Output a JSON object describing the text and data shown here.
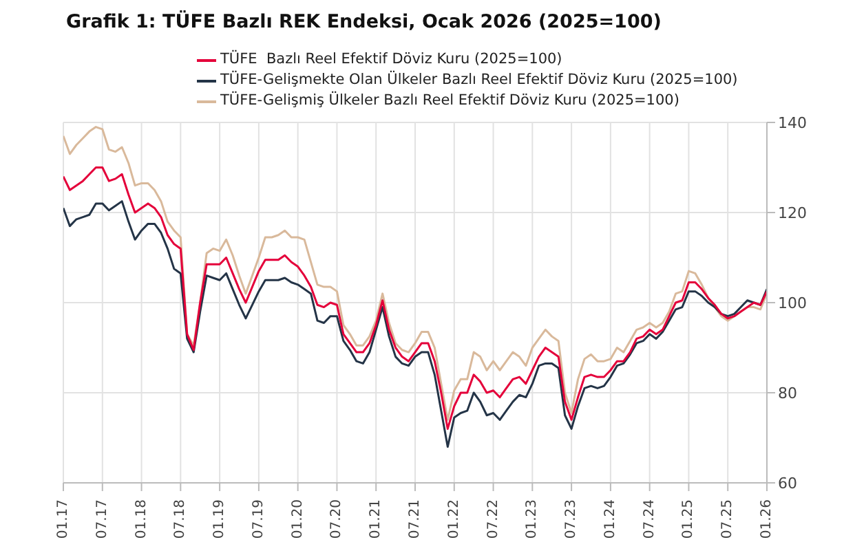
{
  "chart_data": {
    "type": "line",
    "title": "Grafik 1: TÜFE Bazlı REK Endeksi, Ocak 2026 (2025=100)",
    "x": [
      "2017-01",
      "2017-02",
      "2017-03",
      "2017-04",
      "2017-05",
      "2017-06",
      "2017-07",
      "2017-08",
      "2017-09",
      "2017-10",
      "2017-11",
      "2017-12",
      "2018-01",
      "2018-02",
      "2018-03",
      "2018-04",
      "2018-05",
      "2018-06",
      "2018-07",
      "2018-08",
      "2018-09",
      "2018-10",
      "2018-11",
      "2018-12",
      "2019-01",
      "2019-02",
      "2019-03",
      "2019-04",
      "2019-05",
      "2019-06",
      "2019-07",
      "2019-08",
      "2019-09",
      "2019-10",
      "2019-11",
      "2019-12",
      "2020-01",
      "2020-02",
      "2020-03",
      "2020-04",
      "2020-05",
      "2020-06",
      "2020-07",
      "2020-08",
      "2020-09",
      "2020-10",
      "2020-11",
      "2020-12",
      "2021-01",
      "2021-02",
      "2021-03",
      "2021-04",
      "2021-05",
      "2021-06",
      "2021-07",
      "2021-08",
      "2021-09",
      "2021-10",
      "2021-11",
      "2021-12",
      "2022-01",
      "2022-02",
      "2022-03",
      "2022-04",
      "2022-05",
      "2022-06",
      "2022-07",
      "2022-08",
      "2022-09",
      "2022-10",
      "2022-11",
      "2022-12",
      "2023-01",
      "2023-02",
      "2023-03",
      "2023-04",
      "2023-05",
      "2023-06",
      "2023-07",
      "2023-08",
      "2023-09",
      "2023-10",
      "2023-11",
      "2023-12",
      "2024-01",
      "2024-02",
      "2024-03",
      "2024-04",
      "2024-05",
      "2024-06",
      "2024-07",
      "2024-08",
      "2024-09",
      "2024-10",
      "2024-11",
      "2024-12",
      "2025-01",
      "2025-02",
      "2025-03",
      "2025-04",
      "2025-05",
      "2025-06",
      "2025-07",
      "2025-08",
      "2025-09",
      "2025-10",
      "2025-11",
      "2025-12",
      "2026-01"
    ],
    "series": [
      {
        "name": "TÜFE  Bazlı Reel Efektif Döviz Kuru (2025=100)",
        "color": "#e4003a",
        "values": [
          128,
          125,
          126,
          127,
          128.5,
          130,
          130,
          127,
          127.5,
          128.5,
          124,
          120,
          121,
          122,
          121,
          119,
          115,
          113,
          112,
          93,
          89.5,
          100,
          108.5,
          108.5,
          108.5,
          110,
          106.5,
          103,
          100,
          103.5,
          107,
          109.5,
          109.5,
          109.5,
          110.5,
          109,
          108,
          106,
          103.5,
          99.5,
          99,
          100,
          99.5,
          93,
          91,
          89,
          89,
          91,
          95,
          100.5,
          94,
          90,
          88,
          87,
          89,
          91,
          91,
          87,
          80,
          72,
          77,
          80,
          80,
          84,
          82.5,
          80,
          80.5,
          79,
          81,
          83,
          83.5,
          82,
          85,
          88,
          90,
          89,
          88,
          78,
          74,
          79,
          83.5,
          84,
          83.5,
          83.5,
          85,
          87,
          87,
          89,
          92,
          92.5,
          94,
          93,
          94,
          97,
          100,
          100.5,
          104.5,
          104.5,
          103,
          101,
          99.5,
          97.5,
          96.5,
          97,
          98,
          99,
          100,
          99.5,
          102.5
        ]
      },
      {
        "name": "TÜFE-Gelişmekte Olan Ülkeler Bazlı Reel Efektif Döviz Kuru (2025=100)",
        "color": "#243447",
        "values": [
          121,
          117,
          118.5,
          119,
          119.5,
          122,
          122,
          120.5,
          121.5,
          122.5,
          118,
          114,
          116,
          117.5,
          117.5,
          115.5,
          112,
          107.5,
          106.5,
          92,
          89,
          98,
          106,
          105.5,
          105,
          106.5,
          103,
          99.5,
          96.5,
          99.5,
          102.5,
          105,
          105,
          105,
          105.5,
          104.5,
          104,
          103,
          102,
          96,
          95.5,
          97,
          97,
          91.5,
          89.5,
          87,
          86.5,
          89,
          94,
          99,
          92.5,
          88,
          86.5,
          86,
          88,
          89,
          89,
          84,
          76,
          68,
          74.5,
          75.5,
          76,
          80,
          78,
          75,
          75.5,
          74,
          76,
          78,
          79.5,
          79,
          82,
          86,
          86.5,
          86.5,
          85.5,
          75,
          72,
          77,
          81,
          81.5,
          81,
          81.5,
          83.5,
          86,
          86.5,
          88.5,
          91,
          91.5,
          93,
          92,
          93.5,
          96,
          98.5,
          99,
          102.5,
          102.5,
          101.5,
          100,
          99,
          97.5,
          97,
          97.5,
          99,
          100.5,
          100,
          99.5,
          103
        ]
      },
      {
        "name": "TÜFE-Gelişmiş Ülkeler Bazlı Reel Efektif Döviz Kuru (2025=100)",
        "color": "#d9b99b",
        "values": [
          137,
          133,
          135,
          136.5,
          138,
          139,
          138.5,
          134,
          133.5,
          134.5,
          131,
          126,
          126.5,
          126.5,
          125,
          122.5,
          118,
          116,
          114.5,
          93,
          90.5,
          100,
          111,
          112,
          111.5,
          114,
          110.5,
          106,
          102,
          106,
          110,
          114.5,
          114.5,
          115,
          116,
          114.5,
          114.5,
          114,
          109,
          104,
          103.5,
          103.5,
          102.5,
          95,
          93,
          90.5,
          90.5,
          92.5,
          96,
          102,
          95.5,
          91,
          89.5,
          89,
          91,
          93.5,
          93.5,
          90,
          82,
          74,
          80.5,
          83,
          83,
          89,
          88,
          85,
          87,
          85,
          87,
          89,
          88,
          86,
          90,
          92,
          94,
          92.5,
          91.5,
          80,
          75.5,
          83,
          87.5,
          88.5,
          87,
          87,
          87.5,
          90,
          89,
          91.5,
          94,
          94.5,
          95.5,
          94.5,
          95.5,
          98,
          102,
          102.5,
          107,
          106.5,
          104,
          101,
          99,
          97,
          96,
          97,
          98,
          99,
          99,
          98.5,
          102
        ]
      }
    ],
    "xlim": [
      "2017-01",
      "2026-01"
    ],
    "xticks": [
      {
        "value": "2017-01",
        "label": "01.17"
      },
      {
        "value": "2017-07",
        "label": "07.17"
      },
      {
        "value": "2018-01",
        "label": "01.18"
      },
      {
        "value": "2018-07",
        "label": "07.18"
      },
      {
        "value": "2019-01",
        "label": "01.19"
      },
      {
        "value": "2019-07",
        "label": "07.19"
      },
      {
        "value": "2020-01",
        "label": "01.20"
      },
      {
        "value": "2020-07",
        "label": "07.20"
      },
      {
        "value": "2021-01",
        "label": "01.21"
      },
      {
        "value": "2021-07",
        "label": "07.21"
      },
      {
        "value": "2022-01",
        "label": "01.22"
      },
      {
        "value": "2022-07",
        "label": "07.22"
      },
      {
        "value": "2023-01",
        "label": "01.23"
      },
      {
        "value": "2023-07",
        "label": "07.23"
      },
      {
        "value": "2024-01",
        "label": "01.24"
      },
      {
        "value": "2024-07",
        "label": "07.24"
      },
      {
        "value": "2025-01",
        "label": "01.25"
      },
      {
        "value": "2025-07",
        "label": "07.25"
      },
      {
        "value": "2026-01",
        "label": "01.26"
      }
    ],
    "ylim": [
      60,
      140
    ],
    "yticks": [
      60,
      80,
      100,
      120,
      140
    ],
    "grid": true,
    "legend": "top"
  }
}
